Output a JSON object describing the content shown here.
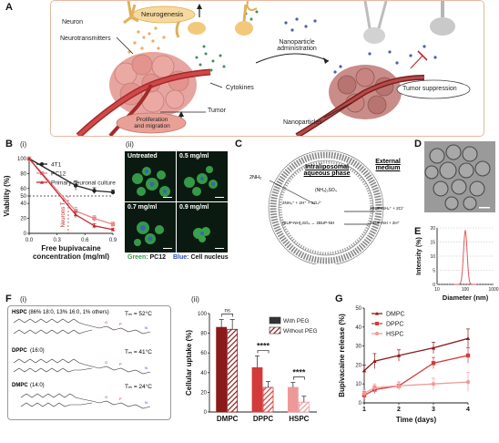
{
  "panel_labels": {
    "A": "A",
    "B": "B",
    "C": "C",
    "D": "D",
    "E": "E",
    "F": "F",
    "G": "G"
  },
  "subpanel_labels": {
    "b_i": "(i)",
    "b_ii": "(ii)",
    "f_i": "(i)",
    "f_ii": "(ii)"
  },
  "panel_a": {
    "neuron": "Neuron",
    "neurotransmitters": "Neurotransmitters",
    "neurogenesis": "Neurogenesis",
    "nanoparticle_admin": "Nanoparticle\nadministration",
    "cytokines": "Cytokines",
    "tumor": "Tumor",
    "prolif": "Proliferation\nand migration",
    "tumor_suppression": "Tumor suppression",
    "nanoparticles": "Nanoparticles"
  },
  "panel_b_images": {
    "tiles": [
      "Untreated",
      "0.5 mg/ml",
      "0.7 mg/ml",
      "0.9 mg/ml"
    ],
    "caption_green": "Green:",
    "caption_green_target": "PC12",
    "caption_blue": "Blue:",
    "caption_blue_target": "Cell nucleus"
  },
  "panel_c": {
    "nh3": "2NH₃",
    "intra_title": "Intraliposomal\naqueous phase",
    "ext_title": "External\nmedium",
    "nh42so4": "(NH₄)₂SO₄",
    "eq1": "2NH₄⁺ + 2H⁺ + SO₄²⁻",
    "eq2": "(BUP-NH)₂SO₄ ↔ 2BUP-NH",
    "eq3": "2BUP-NH₄⁺ + 2Cl⁻",
    "eq4": "2BUP-NH + 2H⁺"
  },
  "panel_f_lipids": [
    {
      "name": "HSPC",
      "comp": "(86% 18:0, 13% 16:0, 1% others)",
      "tm": "Tₘ = 52°C"
    },
    {
      "name": "DPPC",
      "comp": "(16:0)",
      "tm": "Tₘ = 41°C"
    },
    {
      "name": "DMPC",
      "comp": "(14:0)",
      "tm": "Tₘ = 24°C"
    }
  ],
  "chart_data": [
    {
      "type": "line",
      "panel": "B(i)",
      "xlabel": "Free bupivacaine\nconcentration (mg/ml)",
      "ylabel": "Viability (%)",
      "xlim": [
        0,
        0.9
      ],
      "ylim": [
        0,
        100
      ],
      "x_ticks": [
        "0.0",
        "0.3",
        "0.6",
        "0.9"
      ],
      "y_ticks": [
        "0",
        "20",
        "40",
        "50",
        "60",
        "80",
        "100"
      ],
      "annotation": "Neurons\nT₅₀",
      "reference_line_y": 50,
      "x": [
        0,
        0.5,
        0.7,
        0.9
      ],
      "series": [
        {
          "name": "4T1",
          "color": "#222222",
          "values": [
            100,
            64,
            57,
            55
          ],
          "errors": [
            0,
            6,
            4,
            3
          ]
        },
        {
          "name": "PC12",
          "color": "#e58b8b",
          "values": [
            100,
            30,
            20,
            12
          ],
          "errors": [
            0,
            5,
            4,
            3
          ]
        },
        {
          "name": "Primary neuronal culture",
          "color": "#c1272d",
          "values": [
            100,
            25,
            10,
            5
          ],
          "errors": [
            0,
            4,
            3,
            2
          ]
        }
      ]
    },
    {
      "type": "line",
      "panel": "E",
      "xlabel": "Diameter (nm)",
      "ylabel": "Intensity (%)",
      "x_ticks": [
        "10",
        "100",
        "1000"
      ],
      "y_ticks": [
        "0",
        "5",
        "10",
        "15",
        "20"
      ],
      "ylim": [
        0,
        20
      ],
      "series": [
        {
          "name": "",
          "color": "#e05a5a",
          "peak_x": 100,
          "peak_y": 19
        }
      ]
    },
    {
      "type": "bar",
      "panel": "F(ii)",
      "ylabel": "Cellular uptake (%)",
      "ylim": [
        0,
        100
      ],
      "y_ticks": [
        "0",
        "20",
        "40",
        "60",
        "80",
        "100"
      ],
      "categories": [
        "DMPC",
        "DPPC",
        "HSPC"
      ],
      "series": [
        {
          "name": "With PEG",
          "values": [
            86,
            45,
            25
          ],
          "errors": [
            8,
            12,
            5
          ]
        },
        {
          "name": "Without PEG",
          "values": [
            84,
            25,
            10
          ],
          "errors": [
            10,
            6,
            6
          ]
        }
      ],
      "colors": [
        "#8b1a1a",
        "#d33b3b",
        "#ee9999"
      ],
      "significance": [
        "ns",
        "****",
        "****"
      ]
    },
    {
      "type": "line",
      "panel": "G",
      "xlabel": "Time (days)",
      "ylabel": "Bupivacaine release (%)",
      "x_ticks": [
        "1",
        "2",
        "3",
        "4"
      ],
      "y_ticks": [
        "0",
        "10",
        "20",
        "30",
        "40",
        "50"
      ],
      "xlim": [
        1,
        4
      ],
      "ylim": [
        0,
        50
      ],
      "x": [
        1,
        1.3,
        2,
        3,
        4
      ],
      "series": [
        {
          "name": "DMPC",
          "color": "#8b1a1a",
          "values": [
            17,
            22,
            25,
            29,
            34
          ],
          "errors": [
            3,
            4,
            3,
            3,
            5
          ]
        },
        {
          "name": "DPPC",
          "color": "#d33b3b",
          "values": [
            4,
            7,
            9,
            21,
            25
          ],
          "errors": [
            2,
            2,
            2,
            3,
            4
          ]
        },
        {
          "name": "HSPC",
          "color": "#f19a9a",
          "values": [
            5,
            8,
            9,
            10,
            11
          ],
          "errors": [
            2,
            2,
            2,
            3,
            5
          ]
        }
      ]
    }
  ]
}
